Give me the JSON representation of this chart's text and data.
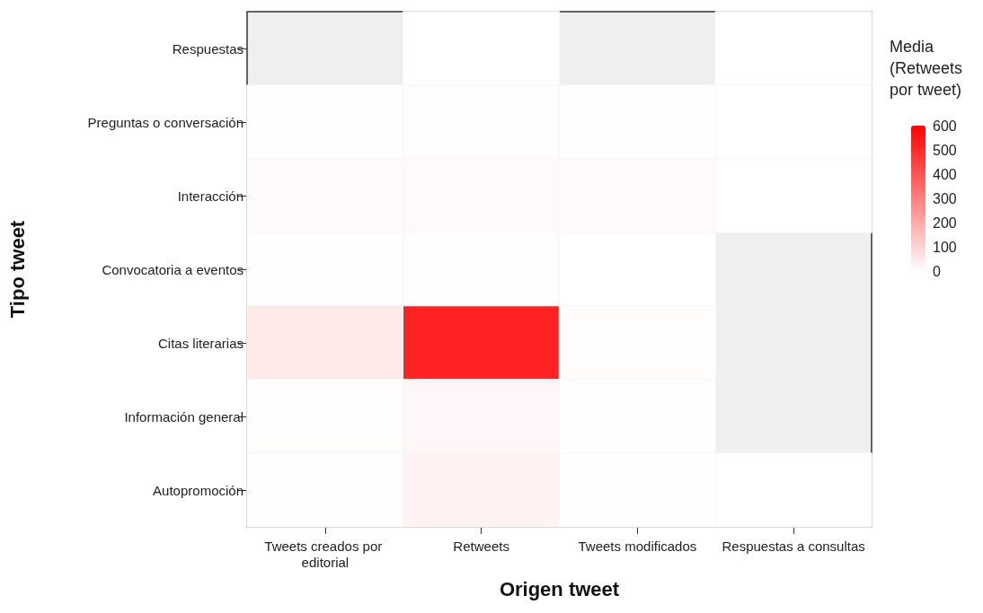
{
  "chart_data": {
    "type": "heatmap",
    "xlabel": "Origen tweet",
    "ylabel": "Tipo tweet",
    "legend_title": "Media (Retweets por tweet)",
    "categories": [
      "Tweets creados por editorial",
      "Retweets",
      "Tweets modificados",
      "Respuestas a consultas"
    ],
    "y_categories": [
      "Respuestas",
      "Preguntas o conversación",
      "Interacción",
      "Convocatoria a eventos",
      "Citas literarias",
      "Información general",
      "Autopromoción"
    ],
    "cells": [
      [
        null,
        0,
        null,
        0
      ],
      [
        3,
        6,
        2,
        1
      ],
      [
        10,
        12,
        9,
        0
      ],
      [
        2,
        3,
        1,
        null
      ],
      [
        50,
        520,
        6,
        null
      ],
      [
        8,
        20,
        3,
        null
      ],
      [
        4,
        30,
        2,
        0
      ]
    ],
    "clim": [
      0,
      600
    ],
    "cticks": [
      0,
      100,
      200,
      300,
      400,
      500,
      600
    ]
  }
}
